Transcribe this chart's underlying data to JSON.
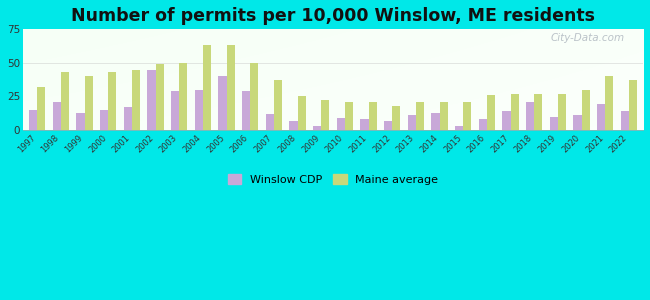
{
  "title": "Number of permits per 10,000 Winslow, ME residents",
  "years": [
    1997,
    1998,
    1999,
    2000,
    2001,
    2002,
    2003,
    2004,
    2005,
    2006,
    2007,
    2008,
    2009,
    2010,
    2011,
    2012,
    2013,
    2014,
    2015,
    2016,
    2017,
    2018,
    2019,
    2020,
    2021,
    2022
  ],
  "winslow": [
    15,
    21,
    13,
    15,
    17,
    45,
    29,
    30,
    40,
    29,
    12,
    7,
    3,
    9,
    8,
    7,
    11,
    13,
    3,
    8,
    14,
    21,
    10,
    11,
    19,
    14
  ],
  "maine": [
    32,
    43,
    40,
    43,
    45,
    49,
    50,
    63,
    63,
    50,
    37,
    25,
    22,
    21,
    21,
    18,
    21,
    21,
    21,
    26,
    27,
    27,
    27,
    30,
    40,
    37
  ],
  "winslow_color": "#c8a8d8",
  "maine_color": "#c8d87a",
  "outer_bg": "#00e8e8",
  "ylim": [
    0,
    75
  ],
  "yticks": [
    0,
    25,
    50,
    75
  ],
  "title_fontsize": 12.5,
  "bar_width": 0.35,
  "legend_winslow": "Winslow CDP",
  "legend_maine": "Maine average"
}
